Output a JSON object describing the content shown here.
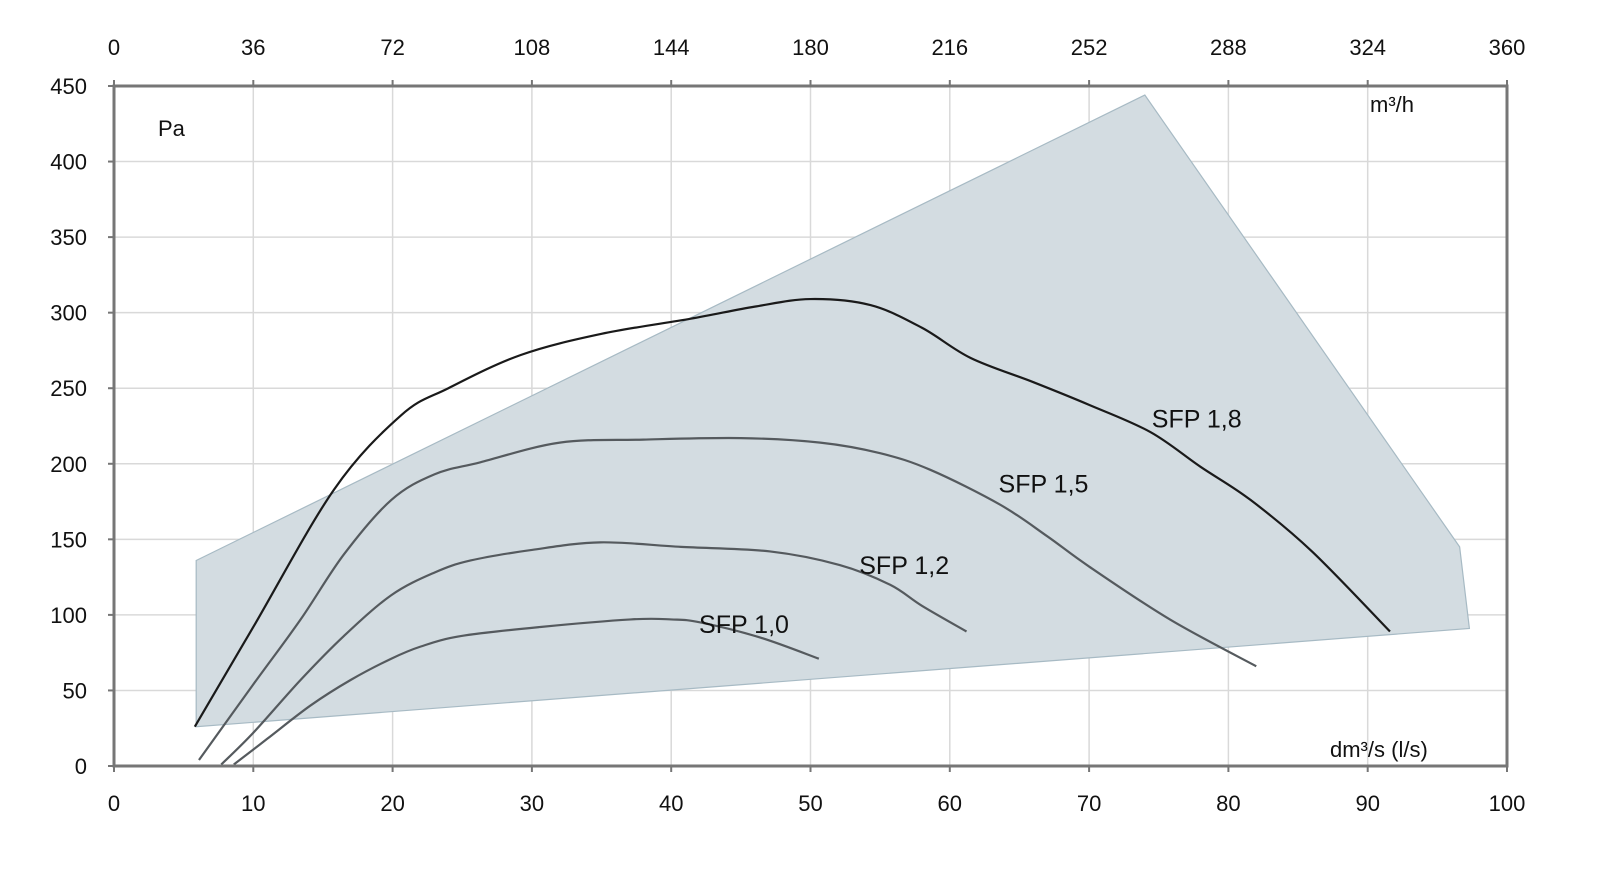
{
  "chart_data": {
    "type": "line",
    "title": "",
    "xlabel": "dm³/s (l/s)",
    "x2label": "m³/h",
    "ylabel": "Pa",
    "xlim": [
      0,
      100
    ],
    "x2lim": [
      0,
      360
    ],
    "ylim": [
      0,
      450
    ],
    "grid": true,
    "x_ticks": [
      "0",
      "10",
      "20",
      "30",
      "40",
      "50",
      "60",
      "70",
      "80",
      "90",
      "100"
    ],
    "x2_ticks": [
      "0",
      "36",
      "72",
      "108",
      "144",
      "180",
      "216",
      "252",
      "288",
      "324",
      "360"
    ],
    "y_ticks": [
      "0",
      "50",
      "100",
      "150",
      "200",
      "250",
      "300",
      "350",
      "400",
      "450"
    ],
    "operating_area": {
      "points": [
        [
          5.9,
          136
        ],
        [
          74,
          444
        ],
        [
          96.6,
          145
        ],
        [
          97.3,
          91
        ],
        [
          5.9,
          26
        ]
      ],
      "fill": "#d3dce1",
      "stroke": "#a7bac4"
    },
    "series": [
      {
        "name": "SFP 1,8",
        "label": "SFP 1,8",
        "label_at": [
          74.5,
          224
        ],
        "color": "#1a1a1a",
        "points": [
          [
            5.8,
            26
          ],
          [
            10,
            92
          ],
          [
            15.8,
            183
          ],
          [
            20.6,
            232
          ],
          [
            24,
            250
          ],
          [
            29.2,
            272
          ],
          [
            35,
            286
          ],
          [
            41.4,
            296
          ],
          [
            46,
            304
          ],
          [
            50,
            309
          ],
          [
            54.3,
            305
          ],
          [
            58,
            290
          ],
          [
            61.5,
            270
          ],
          [
            66,
            254
          ],
          [
            70,
            239
          ],
          [
            74.4,
            221
          ],
          [
            78,
            198
          ],
          [
            81.6,
            176
          ],
          [
            86,
            142
          ],
          [
            91.6,
            89
          ]
        ]
      },
      {
        "name": "SFP 1,5",
        "label": "SFP 1,5",
        "label_at": [
          63.5,
          181
        ],
        "color": "#555a5e",
        "points": [
          [
            6.1,
            4
          ],
          [
            10,
            54
          ],
          [
            13.4,
            97
          ],
          [
            16.5,
            140
          ],
          [
            19.9,
            176
          ],
          [
            23,
            193
          ],
          [
            26.3,
            201
          ],
          [
            32,
            214
          ],
          [
            38,
            216
          ],
          [
            45,
            217
          ],
          [
            50.7,
            214
          ],
          [
            55,
            207
          ],
          [
            58.6,
            196
          ],
          [
            63.6,
            173
          ],
          [
            67,
            152
          ],
          [
            70,
            132
          ],
          [
            75.8,
            97
          ],
          [
            82,
            66
          ]
        ]
      },
      {
        "name": "SFP 1,2",
        "label": "SFP 1,2",
        "label_at": [
          53.5,
          127
        ],
        "color": "#555a5e",
        "points": [
          [
            7.7,
            1
          ],
          [
            10,
            22
          ],
          [
            13.4,
            57
          ],
          [
            16.5,
            86
          ],
          [
            19.9,
            113
          ],
          [
            23,
            128
          ],
          [
            25.6,
            136
          ],
          [
            30,
            143
          ],
          [
            34.9,
            148
          ],
          [
            40.7,
            145
          ],
          [
            47.1,
            142
          ],
          [
            52.1,
            133
          ],
          [
            55.7,
            120
          ],
          [
            58,
            106
          ],
          [
            61.2,
            89
          ]
        ]
      },
      {
        "name": "SFP 1,0",
        "label": "SFP 1,0",
        "label_at": [
          42,
          88
        ],
        "color": "#555a5e",
        "points": [
          [
            8.6,
            1
          ],
          [
            11,
            18
          ],
          [
            14.1,
            40
          ],
          [
            17,
            57
          ],
          [
            19.9,
            71
          ],
          [
            22,
            79
          ],
          [
            24.9,
            86
          ],
          [
            30.6,
            92
          ],
          [
            37.1,
            97
          ],
          [
            40,
            97
          ],
          [
            42.1,
            95
          ],
          [
            46.4,
            85
          ],
          [
            50.6,
            71
          ]
        ]
      }
    ]
  }
}
